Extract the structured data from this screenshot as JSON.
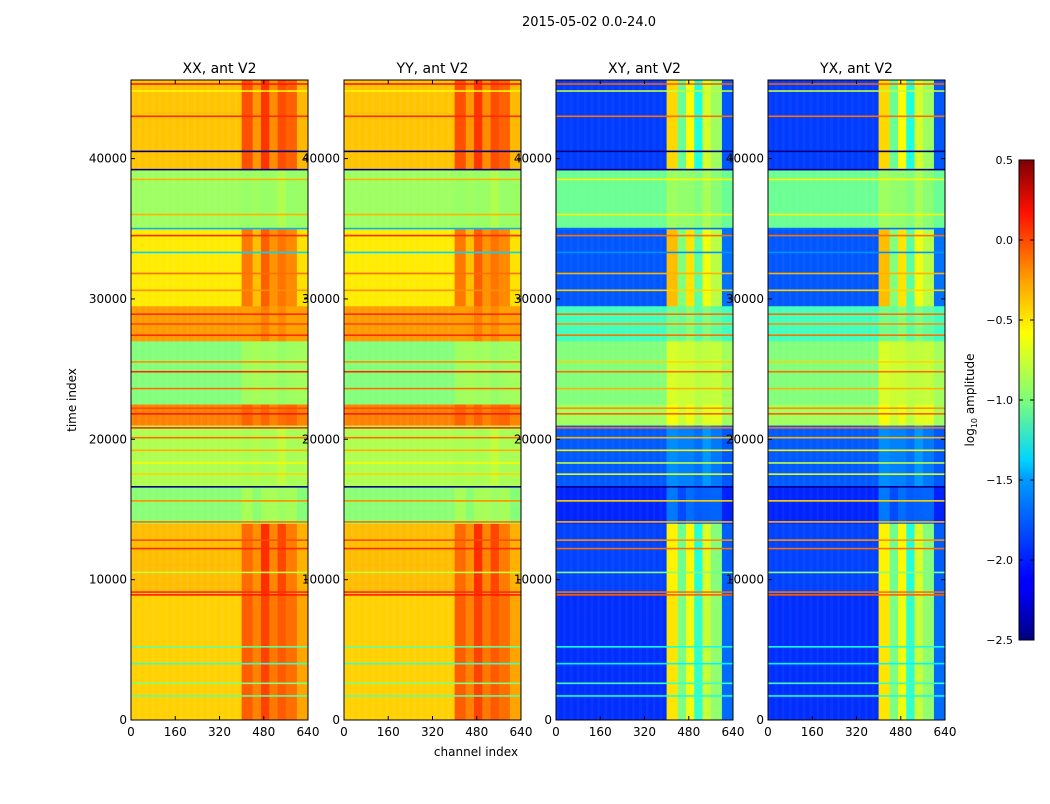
{
  "chart_data": {
    "type": "heatmap",
    "title": "2015-05-02 0.0-24.0",
    "xlabel": "channel index",
    "ylabel": "time index",
    "xlim": [
      0,
      640
    ],
    "ylim": [
      0,
      45600
    ],
    "x_ticks": [
      "0",
      "160",
      "320",
      "480",
      "640"
    ],
    "y_ticks": [
      "0",
      "10000",
      "20000",
      "30000",
      "40000"
    ],
    "panels": [
      {
        "title": "XX, ant V2",
        "kind": "copol"
      },
      {
        "title": "YY, ant V2",
        "kind": "copol"
      },
      {
        "title": "XY, ant V2",
        "kind": "crosspol"
      },
      {
        "title": "YX, ant V2",
        "kind": "crosspol"
      }
    ],
    "colorbar": {
      "label": "log10 amplitude",
      "label_main": "log",
      "label_sub": "10",
      "label_rest": " amplitude",
      "range": [
        -2.5,
        0.5
      ],
      "ticks": [
        "0.5",
        "0.0",
        "−0.5",
        "−1.0",
        "−1.5",
        "−2.0",
        "−2.5"
      ],
      "tick_values": [
        0.5,
        0.0,
        -0.5,
        -1.0,
        -1.5,
        -2.0,
        -2.5
      ],
      "colormap": "jet"
    },
    "channel_segments": [
      [
        0,
        400
      ],
      [
        400,
        440
      ],
      [
        440,
        470
      ],
      [
        470,
        500
      ],
      [
        500,
        530
      ],
      [
        530,
        560
      ],
      [
        560,
        600
      ],
      [
        600,
        640
      ]
    ],
    "channel_profile": {
      "copol": [
        0,
        0.3,
        0.15,
        0.4,
        0.2,
        0.35,
        0.25,
        0.05
      ],
      "crosspol": [
        0,
        1.4,
        0.9,
        1.3,
        0.7,
        1.2,
        1.0,
        0.1
      ]
    },
    "time_bands": [
      {
        "t": [
          0,
          9000
        ],
        "copol": -0.45,
        "crosspol": -1.95,
        "structured": true
      },
      {
        "t": [
          9000,
          14000
        ],
        "copol": -0.45,
        "crosspol": -1.95,
        "structured": true
      },
      {
        "t": [
          14000,
          16600
        ],
        "copol": -0.95,
        "crosspol": -2.0,
        "structured": false
      },
      {
        "t": [
          16600,
          21000
        ],
        "copol": -0.9,
        "crosspol": -1.9,
        "structured": false
      },
      {
        "t": [
          21000,
          22500
        ],
        "copol": -0.25,
        "crosspol": -0.9,
        "structured": false
      },
      {
        "t": [
          22500,
          27000
        ],
        "copol": -0.95,
        "crosspol": -0.95,
        "structured": false
      },
      {
        "t": [
          27000,
          29500
        ],
        "copol": -0.35,
        "crosspol": -1.2,
        "structured": false
      },
      {
        "t": [
          29500,
          35000
        ],
        "copol": -0.55,
        "crosspol": -1.85,
        "structured": true
      },
      {
        "t": [
          35000,
          39200
        ],
        "copol": -0.95,
        "crosspol": -1.1,
        "structured": false
      },
      {
        "t": [
          39200,
          45600
        ],
        "copol": -0.45,
        "crosspol": -1.95,
        "structured": true
      }
    ],
    "lines": [
      {
        "t": 1700,
        "level": -1.1
      },
      {
        "t": 2600,
        "level": -1.0
      },
      {
        "t": 4000,
        "level": -1.2
      },
      {
        "t": 5200,
        "level": -1.1
      },
      {
        "t": 8900,
        "level": 0.05
      },
      {
        "t": 9100,
        "level": 0.0
      },
      {
        "t": 10500,
        "level": -0.8
      },
      {
        "t": 12200,
        "level": 0.0
      },
      {
        "t": 12800,
        "level": -0.1
      },
      {
        "t": 14100,
        "level": -0.2
      },
      {
        "t": 15600,
        "level": -0.3
      },
      {
        "t": 16600,
        "level": -2.6
      },
      {
        "t": 17500,
        "level": -0.5
      },
      {
        "t": 18300,
        "level": -0.6
      },
      {
        "t": 19200,
        "level": -0.4
      },
      {
        "t": 20100,
        "level": -0.2
      },
      {
        "t": 20800,
        "level": 0.0
      },
      {
        "t": 21800,
        "level": 0.05
      },
      {
        "t": 22200,
        "level": -0.1
      },
      {
        "t": 23600,
        "level": -0.2
      },
      {
        "t": 24800,
        "level": 0.0
      },
      {
        "t": 25500,
        "level": -0.3
      },
      {
        "t": 27400,
        "level": 0.0
      },
      {
        "t": 28200,
        "level": -0.1
      },
      {
        "t": 28900,
        "level": 0.0
      },
      {
        "t": 30600,
        "level": -0.3
      },
      {
        "t": 31800,
        "level": -0.2
      },
      {
        "t": 33300,
        "level": -1.5
      },
      {
        "t": 34500,
        "level": 0.0
      },
      {
        "t": 35000,
        "level": -1.6
      },
      {
        "t": 36000,
        "level": -0.4
      },
      {
        "t": 38500,
        "level": -0.4
      },
      {
        "t": 39200,
        "level": -2.6
      },
      {
        "t": 40500,
        "level": -2.6
      },
      {
        "t": 43000,
        "level": 0.0
      },
      {
        "t": 44800,
        "level": -0.6
      },
      {
        "t": 45300,
        "level": 0.05
      }
    ]
  }
}
